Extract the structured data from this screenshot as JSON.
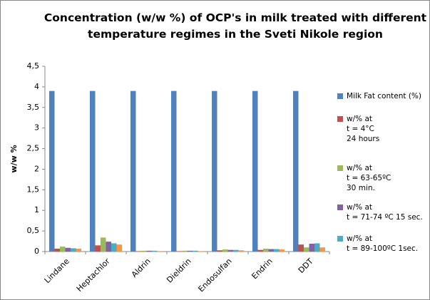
{
  "chart_data": {
    "type": "bar",
    "title": "Concentration (w/w %) of OCP's in milk treated with different\ntemperature regimes in the Sveti Nikole region",
    "y_label": "w/w %",
    "categories": [
      "Lindane",
      "Heptachlor",
      "Aldrin",
      "Dieldrin",
      "Endosulfan",
      "Endrin",
      "DDT"
    ],
    "series": [
      {
        "name": "Milk Fat content (%)",
        "color": "#4f81bd",
        "values": [
          3.9,
          3.9,
          3.9,
          3.9,
          3.9,
          3.9,
          3.9
        ]
      },
      {
        "name": "w/%  at\nt = 4°C\n24 hours",
        "color": "#c0504d",
        "values": [
          0.07,
          0.15,
          0.01,
          0.01,
          0.03,
          0.04,
          0.17
        ]
      },
      {
        "name": "w/% at\nt = 63-65ºC\n30 min.",
        "color": "#9bbb59",
        "values": [
          0.12,
          0.34,
          0.02,
          0.02,
          0.05,
          0.07,
          0.1
        ]
      },
      {
        "name": "w/% at\nt = 71-74 ºC 15 sec.",
        "color": "#8064a2",
        "values": [
          0.09,
          0.24,
          0.02,
          0.02,
          0.04,
          0.06,
          0.19
        ]
      },
      {
        "name": "w/% at\nt = 89-100ºC 1sec.",
        "color": "#4bacc6",
        "values": [
          0.08,
          0.2,
          0.02,
          0.02,
          0.04,
          0.06,
          0.2
        ]
      },
      {
        "color": "#f79646",
        "values": [
          0.07,
          0.17,
          0.01,
          0.01,
          0.03,
          0.05,
          0.1
        ]
      }
    ],
    "ylim": [
      0,
      4.5
    ],
    "yticks": [
      0,
      {
        "value": 0.5,
        "label": "0,5"
      },
      1,
      {
        "value": 1.5,
        "label": "1,5"
      },
      2,
      {
        "value": 2.5,
        "label": "2,5"
      },
      3,
      {
        "value": 3.5,
        "label": "3,5"
      },
      4,
      {
        "value": 4.5,
        "label": "4,5"
      }
    ],
    "grid": false
  }
}
